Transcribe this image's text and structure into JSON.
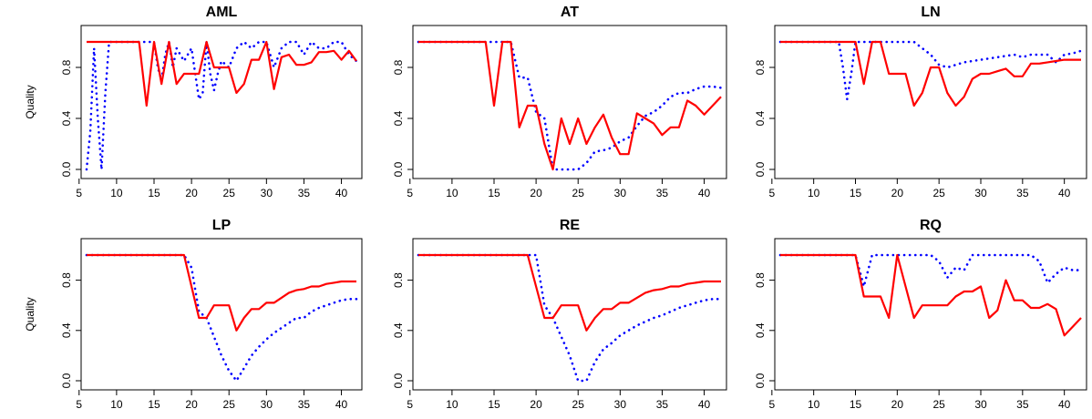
{
  "chart_data": [
    {
      "type": "line",
      "title": "AML",
      "ylabel": "Quality",
      "xlim": [
        6,
        42
      ],
      "ylim": [
        0,
        1
      ],
      "xticks": [
        5,
        10,
        15,
        20,
        25,
        30,
        35,
        40
      ],
      "yticks": [
        0.0,
        0.4,
        0.8
      ],
      "ytick_labels": [
        "0.0",
        "0.4",
        "0.8"
      ],
      "series": [
        {
          "style": "dotted",
          "color": "#0000ff",
          "x": [
            6,
            6.5,
            7,
            7.5,
            8,
            8.5,
            9,
            9.5,
            10,
            11,
            12,
            13,
            14,
            14.5,
            15,
            15.5,
            16,
            16.5,
            17,
            17.5,
            18,
            19,
            20,
            21,
            21.5,
            22,
            22.5,
            23,
            23.5,
            24,
            25,
            26,
            27,
            28,
            29,
            30,
            31,
            32,
            33,
            34,
            35,
            36,
            37,
            38,
            39,
            40,
            41,
            42
          ],
          "y": [
            0.0,
            0.3,
            0.95,
            0.4,
            0.0,
            0.6,
            1.0,
            1.0,
            1.0,
            1.0,
            1.0,
            1.0,
            1.0,
            1.0,
            1.0,
            0.8,
            0.7,
            0.9,
            1.0,
            0.8,
            0.95,
            0.85,
            0.95,
            0.55,
            0.6,
            1.0,
            0.75,
            0.62,
            0.75,
            0.85,
            0.8,
            0.95,
            1.0,
            0.95,
            1.0,
            1.0,
            0.8,
            0.95,
            1.0,
            1.0,
            0.9,
            1.0,
            0.95,
            0.95,
            1.0,
            1.0,
            0.9,
            0.85
          ]
        },
        {
          "style": "solid",
          "color": "#ff0000",
          "x": [
            6,
            7,
            8,
            9,
            10,
            11,
            12,
            13,
            14,
            15,
            16,
            17,
            18,
            19,
            20,
            21,
            22,
            23,
            24,
            25,
            26,
            27,
            28,
            29,
            30,
            31,
            32,
            33,
            34,
            35,
            36,
            37,
            38,
            39,
            40,
            41,
            42
          ],
          "y": [
            1.0,
            1.0,
            1.0,
            1.0,
            1.0,
            1.0,
            1.0,
            1.0,
            0.5,
            1.0,
            0.67,
            1.0,
            0.67,
            0.75,
            0.75,
            0.75,
            1.0,
            0.8,
            0.8,
            0.8,
            0.6,
            0.67,
            0.86,
            0.86,
            1.0,
            0.63,
            0.88,
            0.9,
            0.82,
            0.82,
            0.84,
            0.92,
            0.92,
            0.93,
            0.86,
            0.93,
            0.85
          ]
        }
      ]
    },
    {
      "type": "line",
      "title": "AT",
      "ylabel": "",
      "xlim": [
        6,
        42
      ],
      "ylim": [
        0,
        1
      ],
      "xticks": [
        5,
        10,
        15,
        20,
        25,
        30,
        35,
        40
      ],
      "yticks": [
        0.0,
        0.4,
        0.8
      ],
      "ytick_labels": [
        "0.0",
        "0.4",
        "0.8"
      ],
      "series": [
        {
          "style": "dotted",
          "color": "#0000ff",
          "x": [
            6,
            7,
            8,
            9,
            10,
            11,
            12,
            13,
            14,
            15,
            16,
            17,
            18,
            19,
            20,
            21,
            22,
            23,
            24,
            25,
            26,
            27,
            28,
            29,
            30,
            31,
            32,
            33,
            34,
            35,
            36,
            37,
            38,
            39,
            40,
            41,
            42
          ],
          "y": [
            1.0,
            1.0,
            1.0,
            1.0,
            1.0,
            1.0,
            1.0,
            1.0,
            1.0,
            1.0,
            1.0,
            1.0,
            0.72,
            0.72,
            0.45,
            0.4,
            0.0,
            0.0,
            0.0,
            0.0,
            0.05,
            0.14,
            0.15,
            0.17,
            0.22,
            0.25,
            0.34,
            0.42,
            0.45,
            0.5,
            0.57,
            0.6,
            0.6,
            0.63,
            0.65,
            0.65,
            0.64
          ]
        },
        {
          "style": "solid",
          "color": "#ff0000",
          "x": [
            6,
            7,
            8,
            9,
            10,
            11,
            12,
            13,
            14,
            15,
            16,
            17,
            18,
            19,
            20,
            21,
            22,
            23,
            24,
            25,
            26,
            27,
            28,
            29,
            30,
            31,
            32,
            33,
            34,
            35,
            36,
            37,
            38,
            39,
            40,
            41,
            42
          ],
          "y": [
            1.0,
            1.0,
            1.0,
            1.0,
            1.0,
            1.0,
            1.0,
            1.0,
            1.0,
            0.5,
            1.0,
            1.0,
            0.33,
            0.5,
            0.5,
            0.2,
            0.0,
            0.4,
            0.2,
            0.4,
            0.2,
            0.33,
            0.43,
            0.25,
            0.12,
            0.12,
            0.44,
            0.4,
            0.36,
            0.27,
            0.33,
            0.33,
            0.54,
            0.5,
            0.43,
            0.5,
            0.57
          ]
        }
      ]
    },
    {
      "type": "line",
      "title": "LN",
      "ylabel": "",
      "xlim": [
        6,
        42
      ],
      "ylim": [
        0,
        1
      ],
      "xticks": [
        5,
        10,
        15,
        20,
        25,
        30,
        35,
        40
      ],
      "yticks": [
        0.0,
        0.4,
        0.8
      ],
      "ytick_labels": [
        "0.0",
        "0.4",
        "0.8"
      ],
      "series": [
        {
          "style": "dotted",
          "color": "#0000ff",
          "x": [
            6,
            7,
            8,
            9,
            10,
            11,
            12,
            13,
            13.5,
            14,
            14.5,
            15,
            16,
            17,
            18,
            19,
            20,
            21,
            22,
            23,
            24,
            25,
            26,
            27,
            28,
            29,
            30,
            31,
            32,
            33,
            34,
            35,
            36,
            37,
            38,
            39,
            40,
            41,
            42
          ],
          "y": [
            1.0,
            1.0,
            1.0,
            1.0,
            1.0,
            1.0,
            1.0,
            1.0,
            0.8,
            0.55,
            0.75,
            1.0,
            1.0,
            1.0,
            1.0,
            1.0,
            1.0,
            1.0,
            1.0,
            0.95,
            0.9,
            0.82,
            0.8,
            0.82,
            0.84,
            0.85,
            0.86,
            0.87,
            0.88,
            0.89,
            0.9,
            0.88,
            0.9,
            0.9,
            0.9,
            0.84,
            0.9,
            0.91,
            0.93
          ]
        },
        {
          "style": "solid",
          "color": "#ff0000",
          "x": [
            6,
            7,
            8,
            9,
            10,
            11,
            12,
            13,
            14,
            15,
            16,
            17,
            18,
            19,
            20,
            21,
            22,
            23,
            24,
            25,
            26,
            27,
            28,
            29,
            30,
            31,
            32,
            33,
            34,
            35,
            36,
            37,
            38,
            39,
            40,
            41,
            42
          ],
          "y": [
            1.0,
            1.0,
            1.0,
            1.0,
            1.0,
            1.0,
            1.0,
            1.0,
            1.0,
            1.0,
            0.67,
            1.0,
            1.0,
            0.75,
            0.75,
            0.75,
            0.5,
            0.6,
            0.8,
            0.8,
            0.6,
            0.5,
            0.57,
            0.71,
            0.75,
            0.75,
            0.77,
            0.79,
            0.73,
            0.73,
            0.83,
            0.83,
            0.84,
            0.85,
            0.86,
            0.86,
            0.86
          ]
        }
      ]
    },
    {
      "type": "line",
      "title": "LP",
      "ylabel": "Quality",
      "xlim": [
        6,
        42
      ],
      "ylim": [
        0,
        1
      ],
      "xticks": [
        5,
        10,
        15,
        20,
        25,
        30,
        35,
        40
      ],
      "yticks": [
        0.0,
        0.4,
        0.8
      ],
      "ytick_labels": [
        "0.0",
        "0.4",
        "0.8"
      ],
      "series": [
        {
          "style": "dotted",
          "color": "#0000ff",
          "x": [
            6,
            7,
            8,
            9,
            10,
            11,
            12,
            13,
            14,
            15,
            16,
            17,
            18,
            19,
            20,
            21,
            22,
            23,
            24,
            25,
            26,
            27,
            28,
            29,
            30,
            31,
            32,
            33,
            34,
            35,
            36,
            37,
            38,
            39,
            40,
            41,
            42
          ],
          "y": [
            1.0,
            1.0,
            1.0,
            1.0,
            1.0,
            1.0,
            1.0,
            1.0,
            1.0,
            1.0,
            1.0,
            1.0,
            1.0,
            1.0,
            0.9,
            0.55,
            0.5,
            0.35,
            0.2,
            0.08,
            0.0,
            0.1,
            0.2,
            0.27,
            0.33,
            0.38,
            0.42,
            0.46,
            0.5,
            0.5,
            0.55,
            0.58,
            0.6,
            0.62,
            0.64,
            0.65,
            0.65
          ]
        },
        {
          "style": "solid",
          "color": "#ff0000",
          "x": [
            6,
            7,
            8,
            9,
            10,
            11,
            12,
            13,
            14,
            15,
            16,
            17,
            18,
            19,
            20,
            21,
            22,
            23,
            24,
            25,
            26,
            27,
            28,
            29,
            30,
            31,
            32,
            33,
            34,
            35,
            36,
            37,
            38,
            39,
            40,
            41,
            42
          ],
          "y": [
            1.0,
            1.0,
            1.0,
            1.0,
            1.0,
            1.0,
            1.0,
            1.0,
            1.0,
            1.0,
            1.0,
            1.0,
            1.0,
            1.0,
            0.75,
            0.5,
            0.5,
            0.6,
            0.6,
            0.6,
            0.4,
            0.5,
            0.57,
            0.57,
            0.62,
            0.62,
            0.66,
            0.7,
            0.72,
            0.73,
            0.75,
            0.75,
            0.77,
            0.78,
            0.79,
            0.79,
            0.79
          ]
        }
      ]
    },
    {
      "type": "line",
      "title": "RE",
      "ylabel": "",
      "xlim": [
        6,
        42
      ],
      "ylim": [
        0,
        1
      ],
      "xticks": [
        5,
        10,
        15,
        20,
        25,
        30,
        35,
        40
      ],
      "yticks": [
        0.0,
        0.4,
        0.8
      ],
      "ytick_labels": [
        "0.0",
        "0.4",
        "0.8"
      ],
      "series": [
        {
          "style": "dotted",
          "color": "#0000ff",
          "x": [
            6,
            7,
            8,
            9,
            10,
            11,
            12,
            13,
            14,
            15,
            16,
            17,
            18,
            19,
            20,
            21,
            22,
            23,
            24,
            25,
            26,
            27,
            28,
            29,
            30,
            31,
            32,
            33,
            34,
            35,
            36,
            37,
            38,
            39,
            40,
            41,
            42
          ],
          "y": [
            1.0,
            1.0,
            1.0,
            1.0,
            1.0,
            1.0,
            1.0,
            1.0,
            1.0,
            1.0,
            1.0,
            1.0,
            1.0,
            1.0,
            1.0,
            0.6,
            0.5,
            0.35,
            0.2,
            0.0,
            0.0,
            0.15,
            0.25,
            0.3,
            0.36,
            0.4,
            0.44,
            0.47,
            0.5,
            0.52,
            0.55,
            0.58,
            0.6,
            0.62,
            0.64,
            0.65,
            0.65
          ]
        },
        {
          "style": "solid",
          "color": "#ff0000",
          "x": [
            6,
            7,
            8,
            9,
            10,
            11,
            12,
            13,
            14,
            15,
            16,
            17,
            18,
            19,
            20,
            21,
            22,
            23,
            24,
            25,
            26,
            27,
            28,
            29,
            30,
            31,
            32,
            33,
            34,
            35,
            36,
            37,
            38,
            39,
            40,
            41,
            42
          ],
          "y": [
            1.0,
            1.0,
            1.0,
            1.0,
            1.0,
            1.0,
            1.0,
            1.0,
            1.0,
            1.0,
            1.0,
            1.0,
            1.0,
            1.0,
            0.75,
            0.5,
            0.5,
            0.6,
            0.6,
            0.6,
            0.4,
            0.5,
            0.57,
            0.57,
            0.62,
            0.62,
            0.66,
            0.7,
            0.72,
            0.73,
            0.75,
            0.75,
            0.77,
            0.78,
            0.79,
            0.79,
            0.79
          ]
        }
      ]
    },
    {
      "type": "line",
      "title": "RQ",
      "ylabel": "",
      "xlim": [
        6,
        42
      ],
      "ylim": [
        0,
        1
      ],
      "xticks": [
        5,
        10,
        15,
        20,
        25,
        30,
        35,
        40
      ],
      "yticks": [
        0.0,
        0.4,
        0.8
      ],
      "ytick_labels": [
        "0.0",
        "0.4",
        "0.8"
      ],
      "series": [
        {
          "style": "dotted",
          "color": "#0000ff",
          "x": [
            6,
            7,
            8,
            9,
            10,
            11,
            12,
            13,
            14,
            15,
            16,
            17,
            18,
            19,
            20,
            21,
            22,
            23,
            24,
            25,
            26,
            27,
            28,
            29,
            30,
            31,
            32,
            33,
            34,
            35,
            36,
            37,
            38,
            39,
            40,
            41,
            42
          ],
          "y": [
            1.0,
            1.0,
            1.0,
            1.0,
            1.0,
            1.0,
            1.0,
            1.0,
            1.0,
            1.0,
            0.75,
            1.0,
            1.0,
            1.0,
            1.0,
            1.0,
            1.0,
            1.0,
            1.0,
            0.95,
            0.82,
            0.9,
            0.88,
            1.0,
            1.0,
            1.0,
            1.0,
            1.0,
            1.0,
            1.0,
            1.0,
            0.95,
            0.78,
            0.85,
            0.9,
            0.88,
            0.88
          ]
        },
        {
          "style": "solid",
          "color": "#ff0000",
          "x": [
            6,
            7,
            8,
            9,
            10,
            11,
            12,
            13,
            14,
            15,
            16,
            17,
            18,
            19,
            20,
            21,
            22,
            23,
            24,
            25,
            26,
            27,
            28,
            29,
            30,
            31,
            32,
            33,
            34,
            35,
            36,
            37,
            38,
            39,
            40,
            41,
            42
          ],
          "y": [
            1.0,
            1.0,
            1.0,
            1.0,
            1.0,
            1.0,
            1.0,
            1.0,
            1.0,
            1.0,
            0.67,
            0.67,
            0.67,
            0.5,
            1.0,
            0.75,
            0.5,
            0.6,
            0.6,
            0.6,
            0.6,
            0.67,
            0.71,
            0.71,
            0.75,
            0.5,
            0.56,
            0.8,
            0.64,
            0.64,
            0.58,
            0.58,
            0.61,
            0.57,
            0.36,
            0.43,
            0.5
          ]
        }
      ]
    }
  ]
}
